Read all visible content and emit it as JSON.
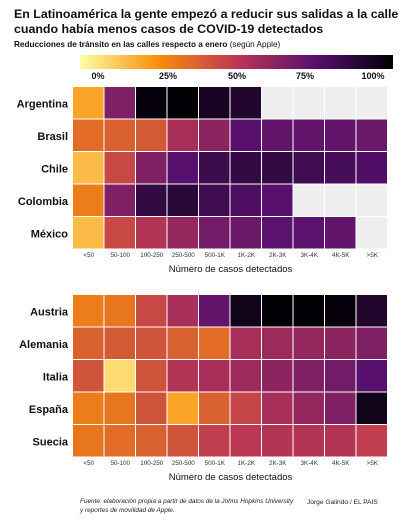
{
  "title": "En Latinoamérica la gente empezó a reducir sus salidas a la calle cuando había menos casos de COVID-19 detectados",
  "subtitle": "Reducciones de tránsito en las calles respecto a enero",
  "subtitle_source": "(según Apple)",
  "colorbar": {
    "ticks": [
      "0%",
      "25%",
      "50%",
      "75%",
      "100%"
    ],
    "colors": [
      "#fcffa4",
      "#f98e09",
      "#bc3754",
      "#57106e",
      "#000004"
    ]
  },
  "footer": "Fuente: elaboración propia a partir de datos de la Johns Hopkins University y reportes de movilidad de Apple.",
  "credit": "Jorge Galindo / EL PAIS",
  "chart_data": [
    {
      "type": "heatmap",
      "xlabel": "Número de casos detectados",
      "categories": [
        "<50",
        "50-100",
        "100-250",
        "250-500",
        "500-1K",
        "1K-2K",
        "2K-3K",
        "3K-4K",
        "4K-5K",
        ">5K"
      ],
      "rows": [
        "Argentina",
        "Brasil",
        "Chile",
        "Colombia",
        "México"
      ],
      "values": [
        [
          20,
          65,
          98,
          100,
          93,
          90,
          null,
          null,
          null,
          null
        ],
        [
          35,
          38,
          40,
          55,
          62,
          75,
          72,
          72,
          72,
          70
        ],
        [
          15,
          45,
          65,
          75,
          83,
          85,
          85,
          82,
          80,
          77
        ],
        [
          30,
          65,
          85,
          88,
          82,
          78,
          75,
          null,
          null,
          null
        ],
        [
          15,
          45,
          52,
          60,
          68,
          70,
          74,
          74,
          72,
          null
        ]
      ],
      "value_range": [
        0,
        100
      ]
    },
    {
      "type": "heatmap",
      "xlabel": "Número de casos detectados",
      "categories": [
        "<50",
        "50-100",
        "100-250",
        "250-500",
        "500-1K",
        "1K-2K",
        "2K-3K",
        "3K-4K",
        "4K-5K",
        ">5K"
      ],
      "rows": [
        "Austria",
        "Alemania",
        "Italia",
        "España",
        "Suecia"
      ],
      "values": [
        [
          30,
          32,
          45,
          55,
          72,
          95,
          100,
          100,
          98,
          90
        ],
        [
          38,
          40,
          42,
          38,
          35,
          55,
          58,
          60,
          62,
          65
        ],
        [
          42,
          8,
          42,
          52,
          55,
          58,
          62,
          65,
          68,
          75
        ],
        [
          30,
          32,
          42,
          20,
          38,
          46,
          55,
          60,
          65,
          95
        ],
        [
          32,
          35,
          38,
          42,
          48,
          50,
          52,
          52,
          52,
          48
        ]
      ],
      "value_range": [
        0,
        100
      ]
    }
  ]
}
